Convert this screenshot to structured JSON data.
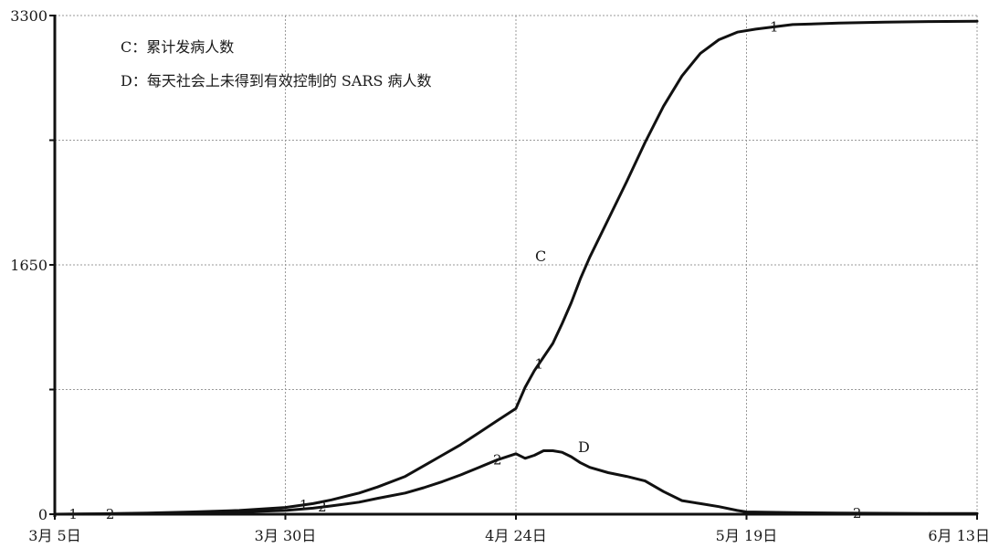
{
  "chart_data": {
    "type": "line",
    "x_unit": "day",
    "x_ticks": [
      {
        "day": 0,
        "label": "3月 5日"
      },
      {
        "day": 25,
        "label": "3月 30日"
      },
      {
        "day": 50,
        "label": "4月 24日"
      },
      {
        "day": 75,
        "label": "5月 19日"
      },
      {
        "day": 100,
        "label": "6月 13日"
      }
    ],
    "xlim": [
      0,
      100
    ],
    "y_ticks": [
      {
        "value": 0,
        "label": "0"
      },
      {
        "value": 1650,
        "label": "1650"
      },
      {
        "value": 3300,
        "label": "3300"
      }
    ],
    "ylim": [
      0,
      3300
    ],
    "grid": true,
    "legend": [
      {
        "text": "C：累计发病人数"
      },
      {
        "text": "D：每天社会上未得到有效控制的 SARS 病人数"
      }
    ],
    "series": [
      {
        "name": "C",
        "marker": "1",
        "marker_days": [
          2,
          27,
          52.5,
          78
        ],
        "x": [
          0,
          5,
          10,
          15,
          20,
          25,
          28,
          30,
          33,
          35,
          38,
          40,
          42,
          44,
          46,
          48,
          50,
          51,
          52,
          53,
          54,
          55,
          56,
          57,
          58,
          60,
          62,
          64,
          66,
          68,
          70,
          72,
          74,
          76,
          78,
          80,
          85,
          90,
          95,
          100
        ],
        "values": [
          0,
          3,
          8,
          15,
          25,
          45,
          70,
          95,
          140,
          180,
          250,
          320,
          390,
          460,
          540,
          620,
          700,
          840,
          950,
          1040,
          1130,
          1260,
          1400,
          1560,
          1700,
          1950,
          2200,
          2460,
          2700,
          2900,
          3050,
          3140,
          3190,
          3210,
          3225,
          3240,
          3250,
          3256,
          3260,
          3262
        ]
      },
      {
        "name": "D",
        "marker": "2",
        "marker_days": [
          6,
          29,
          48,
          87
        ],
        "x": [
          0,
          5,
          10,
          15,
          20,
          25,
          28,
          30,
          33,
          35,
          38,
          40,
          42,
          44,
          46,
          48,
          50,
          51,
          52,
          53,
          54,
          55,
          56,
          57,
          58,
          60,
          62,
          64,
          66,
          68,
          70,
          72,
          74,
          75,
          80,
          85,
          90,
          95,
          100
        ],
        "values": [
          0,
          1,
          3,
          8,
          15,
          25,
          40,
          55,
          80,
          105,
          140,
          175,
          215,
          260,
          310,
          360,
          400,
          370,
          390,
          420,
          420,
          410,
          380,
          340,
          310,
          275,
          250,
          220,
          150,
          90,
          70,
          50,
          25,
          15,
          10,
          8,
          6,
          5,
          5
        ]
      }
    ]
  }
}
